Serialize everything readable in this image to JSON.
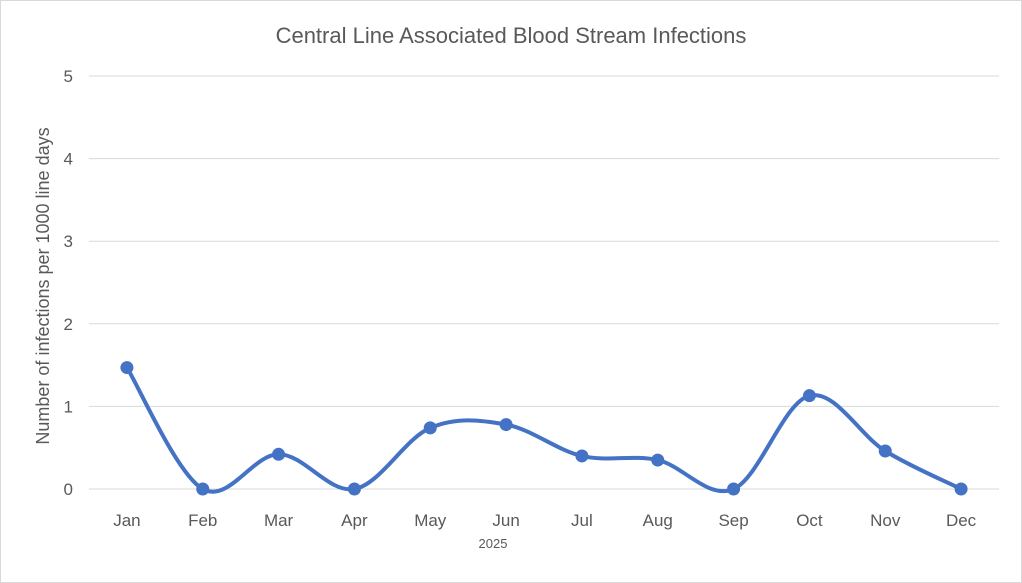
{
  "chart_data": {
    "type": "line",
    "smooth": true,
    "title": "Central Line Associated Blood Stream Infections",
    "xlabel": "",
    "x_group_label": "2025",
    "ylabel": "Number of infections per 1000 line days",
    "categories": [
      "Jan",
      "Feb",
      "Mar",
      "Apr",
      "May",
      "Jun",
      "Jul",
      "Aug",
      "Sep",
      "Oct",
      "Nov",
      "Dec"
    ],
    "series": [
      {
        "values": [
          1.47,
          0,
          0.42,
          0,
          0.74,
          0.78,
          0.4,
          0.35,
          0,
          1.13,
          0.46,
          0
        ],
        "color": "#4472c4",
        "marker": "circle"
      }
    ],
    "ylim": [
      0,
      5
    ],
    "yticks": [
      0,
      1,
      2,
      3,
      4,
      5
    ],
    "grid": true,
    "legend": "none"
  }
}
